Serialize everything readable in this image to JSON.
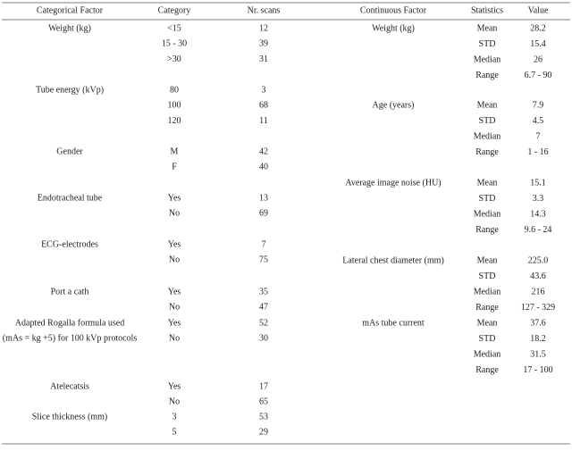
{
  "left_table": {
    "header": [
      "Categorical Factor",
      "Category",
      "Nr. scans"
    ],
    "groups": [
      {
        "factor": [
          "Weight (kg)"
        ],
        "rows": [
          [
            "<15",
            12
          ],
          [
            "15 - 30",
            39
          ],
          [
            ">30",
            31
          ]
        ]
      },
      {
        "factor": [
          "Tube energy (kVp)"
        ],
        "rows": [
          [
            80,
            3
          ],
          [
            100,
            68
          ],
          [
            120,
            11
          ]
        ]
      },
      {
        "factor": [
          "Gender"
        ],
        "rows": [
          [
            "M",
            42
          ],
          [
            "F",
            40
          ]
        ]
      },
      {
        "factor": [
          "Endotracheal tube"
        ],
        "rows": [
          [
            "Yes",
            13
          ],
          [
            "No",
            69
          ]
        ]
      },
      {
        "factor": [
          "ECG-electrodes"
        ],
        "rows": [
          [
            "Yes",
            7
          ],
          [
            "No",
            75
          ]
        ]
      },
      {
        "factor": [
          "Port a cath"
        ],
        "rows": [
          [
            "Yes",
            35
          ],
          [
            "No",
            47
          ]
        ]
      },
      {
        "factor": [
          "Adapted Rogalla formula used",
          "(mAs = kg +5) for 100 kVp protocols"
        ],
        "rows": [
          [
            "Yes",
            52
          ],
          [
            "No",
            30
          ]
        ]
      },
      {
        "factor": [
          "Atelecatsis"
        ],
        "rows": [
          [
            "Yes",
            17
          ],
          [
            "No",
            65
          ]
        ]
      },
      {
        "factor": [
          "Slice thickness (mm)"
        ],
        "rows": [
          [
            3,
            53
          ],
          [
            5,
            29
          ]
        ]
      }
    ]
  },
  "right_table": {
    "header": [
      "Continuous Factor",
      "Statistics",
      "Value"
    ],
    "groups": [
      {
        "factor": "Weight (kg)",
        "rows": [
          [
            "Mean",
            28.2
          ],
          [
            "STD",
            15.4
          ],
          [
            "Median",
            26
          ],
          [
            "Range",
            "6.7 - 90"
          ]
        ]
      },
      {
        "factor": "Age (years)",
        "rows": [
          [
            "Mean",
            7.9
          ],
          [
            "STD",
            4.5
          ],
          [
            "Median",
            7
          ],
          [
            "Range",
            "1 - 16"
          ]
        ]
      },
      {
        "factor": "Average image noise (HU)",
        "rows": [
          [
            "Mean",
            15.1
          ],
          [
            "STD",
            3.3
          ],
          [
            "Median",
            14.3
          ],
          [
            "Range",
            "9.6 - 24"
          ]
        ]
      },
      {
        "factor": "Lateral chest diameter (mm)",
        "rows": [
          [
            "Mean",
            "225.0"
          ],
          [
            "STD",
            43.6
          ],
          [
            "Median",
            216
          ],
          [
            "Range",
            "127 - 329"
          ]
        ]
      },
      {
        "factor": "mAs tube current",
        "rows": [
          [
            "Mean",
            37.6
          ],
          [
            "STD",
            18.2
          ],
          [
            "Median",
            31.5
          ],
          [
            "Range",
            "17 - 100"
          ]
        ]
      }
    ]
  }
}
